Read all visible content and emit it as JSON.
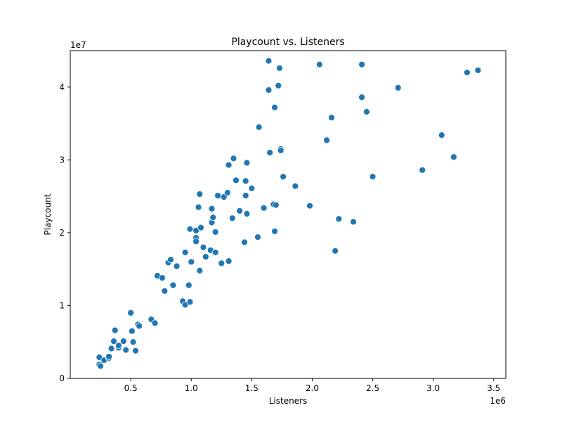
{
  "chart_data": {
    "type": "scatter",
    "title": "Playcount vs. Listeners",
    "xlabel": "Listeners",
    "ylabel": "Playcount",
    "x_offset_label": "1e6",
    "y_offset_label": "1e7",
    "xlim": [
      0,
      3.6
    ],
    "ylim": [
      0,
      4.5
    ],
    "x_ticks": [
      0.5,
      1.0,
      1.5,
      2.0,
      2.5,
      3.0,
      3.5
    ],
    "x_tick_labels": [
      "0.5",
      "1.0",
      "1.5",
      "2.0",
      "2.5",
      "3.0",
      "3.5"
    ],
    "y_ticks": [
      0,
      1,
      2,
      3,
      4
    ],
    "y_tick_labels": [
      "0",
      "1",
      "2",
      "3",
      "4"
    ],
    "grid": false,
    "marker_color": "#1f77b4",
    "x_units_note": "x values in millions (1e6), y values in tens of millions (1e7)",
    "points": [
      [
        0.24,
        0.29
      ],
      [
        0.24,
        0.19
      ],
      [
        0.25,
        0.17
      ],
      [
        0.28,
        0.25
      ],
      [
        0.32,
        0.28
      ],
      [
        0.32,
        0.3
      ],
      [
        0.34,
        0.41
      ],
      [
        0.36,
        0.51
      ],
      [
        0.37,
        0.66
      ],
      [
        0.4,
        0.42
      ],
      [
        0.4,
        0.45
      ],
      [
        0.44,
        0.51
      ],
      [
        0.46,
        0.39
      ],
      [
        0.5,
        0.9
      ],
      [
        0.51,
        0.65
      ],
      [
        0.52,
        0.5
      ],
      [
        0.54,
        0.38
      ],
      [
        0.56,
        0.74
      ],
      [
        0.57,
        0.72
      ],
      [
        0.67,
        0.81
      ],
      [
        0.7,
        0.76
      ],
      [
        0.72,
        1.41
      ],
      [
        0.76,
        1.38
      ],
      [
        0.78,
        1.2
      ],
      [
        0.81,
        1.59
      ],
      [
        0.83,
        1.63
      ],
      [
        0.85,
        1.28
      ],
      [
        0.88,
        1.54
      ],
      [
        0.93,
        1.06
      ],
      [
        0.95,
        1.01
      ],
      [
        0.95,
        1.73
      ],
      [
        0.98,
        1.28
      ],
      [
        0.99,
        2.05
      ],
      [
        0.99,
        1.05
      ],
      [
        1.0,
        1.6
      ],
      [
        1.04,
        2.03
      ],
      [
        1.04,
        1.93
      ],
      [
        1.04,
        1.88
      ],
      [
        1.06,
        2.35
      ],
      [
        1.07,
        1.48
      ],
      [
        1.07,
        2.53
      ],
      [
        1.08,
        2.07
      ],
      [
        1.1,
        1.8
      ],
      [
        1.12,
        1.67
      ],
      [
        1.16,
        1.76
      ],
      [
        1.17,
        2.33
      ],
      [
        1.17,
        2.14
      ],
      [
        1.18,
        2.21
      ],
      [
        1.2,
        2.01
      ],
      [
        1.2,
        1.73
      ],
      [
        1.22,
        2.51
      ],
      [
        1.25,
        1.58
      ],
      [
        1.27,
        2.49
      ],
      [
        1.3,
        2.55
      ],
      [
        1.31,
        2.93
      ],
      [
        1.31,
        1.61
      ],
      [
        1.34,
        2.2
      ],
      [
        1.35,
        3.02
      ],
      [
        1.37,
        2.72
      ],
      [
        1.4,
        2.3
      ],
      [
        1.44,
        1.87
      ],
      [
        1.45,
        2.71
      ],
      [
        1.45,
        2.51
      ],
      [
        1.46,
        2.26
      ],
      [
        1.46,
        2.96
      ],
      [
        1.5,
        2.61
      ],
      [
        1.55,
        1.94
      ],
      [
        1.56,
        3.45
      ],
      [
        1.6,
        2.34
      ],
      [
        1.64,
        4.36
      ],
      [
        1.64,
        3.96
      ],
      [
        1.65,
        3.1
      ],
      [
        1.68,
        2.39
      ],
      [
        1.69,
        2.02
      ],
      [
        1.69,
        3.72
      ],
      [
        1.7,
        2.38
      ],
      [
        1.72,
        4.02
      ],
      [
        1.73,
        4.26
      ],
      [
        1.74,
        3.15
      ],
      [
        1.74,
        3.13
      ],
      [
        1.76,
        2.77
      ],
      [
        1.86,
        2.64
      ],
      [
        1.98,
        2.37
      ],
      [
        2.06,
        4.31
      ],
      [
        2.12,
        3.27
      ],
      [
        2.16,
        3.58
      ],
      [
        2.19,
        1.75
      ],
      [
        2.22,
        2.19
      ],
      [
        2.34,
        2.15
      ],
      [
        2.41,
        4.31
      ],
      [
        2.41,
        3.86
      ],
      [
        2.45,
        3.66
      ],
      [
        2.5,
        2.77
      ],
      [
        2.71,
        3.99
      ],
      [
        2.91,
        2.86
      ],
      [
        3.07,
        3.34
      ],
      [
        3.17,
        3.04
      ],
      [
        3.28,
        4.2
      ],
      [
        3.37,
        4.23
      ]
    ]
  }
}
